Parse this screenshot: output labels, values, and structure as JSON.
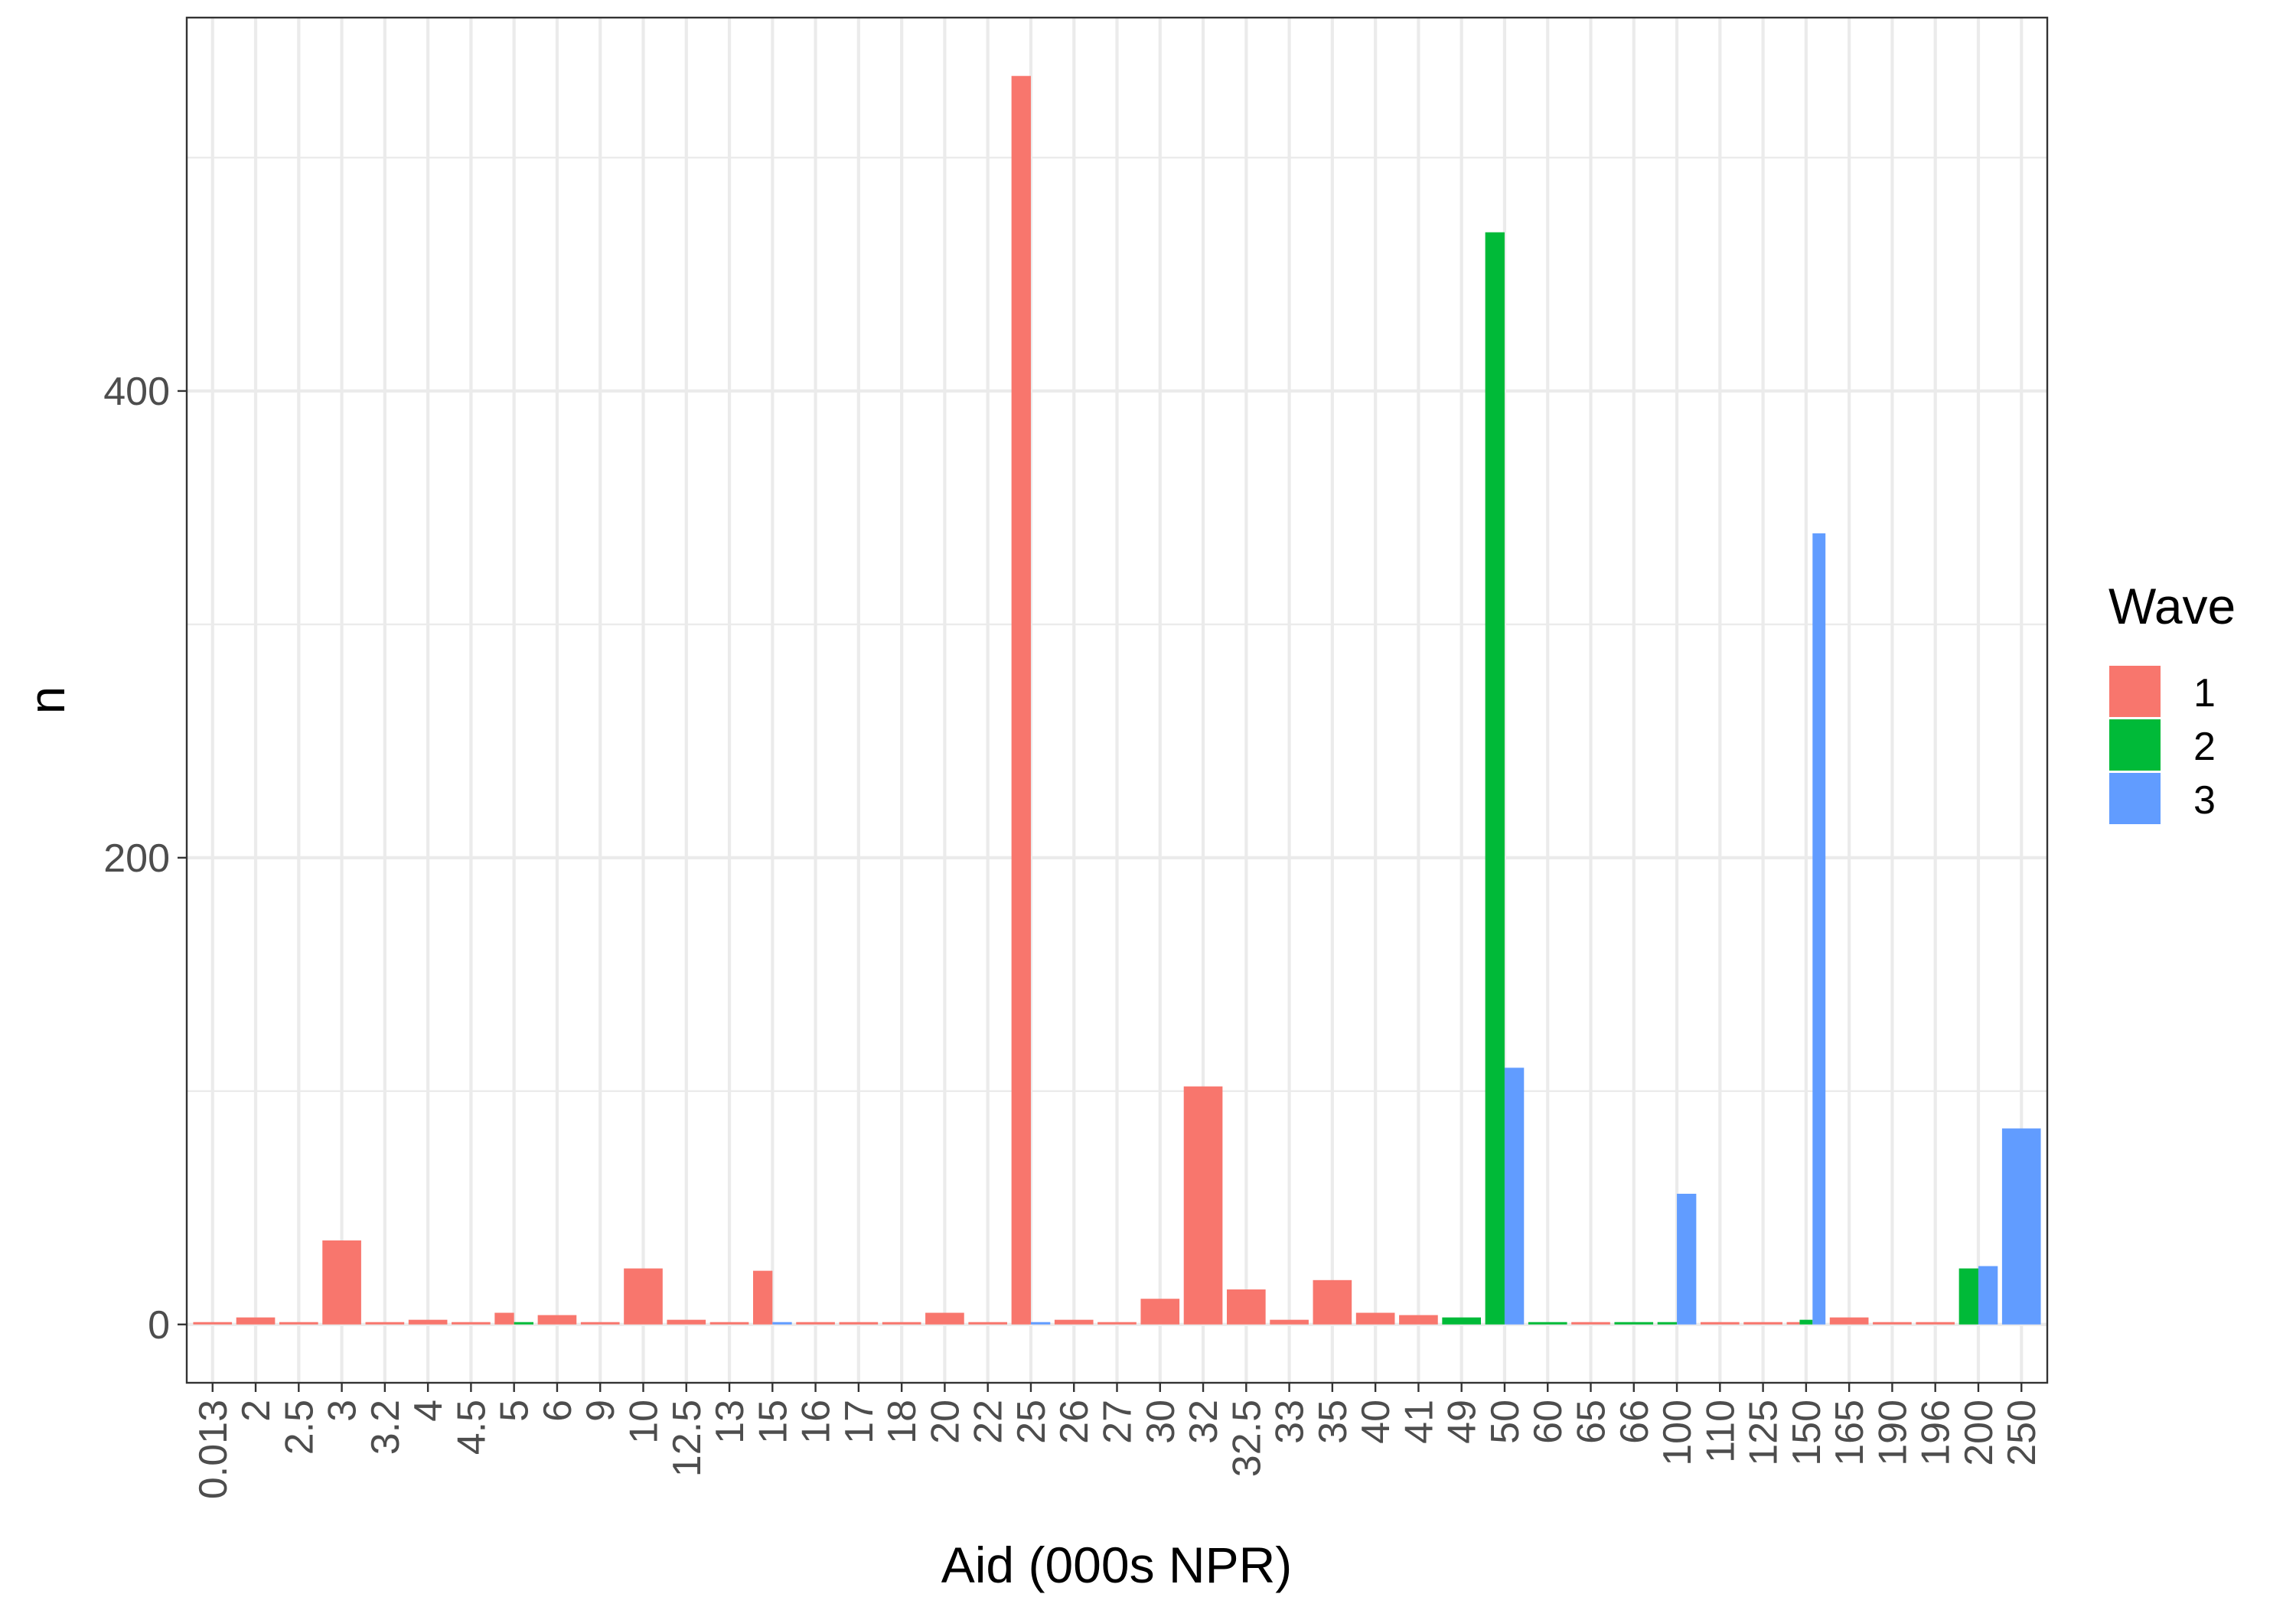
{
  "chart_data": {
    "type": "bar",
    "position": "dodge",
    "xlabel": "Aid (000s NPR)",
    "ylabel": "n",
    "yticks": [
      0,
      200,
      400
    ],
    "ylim": [
      -25,
      560
    ],
    "grid": true,
    "legend": {
      "title": "Wave",
      "placement": "right",
      "entries": [
        {
          "label": "1",
          "color": "#F8766D"
        },
        {
          "label": "2",
          "color": "#00BA38"
        },
        {
          "label": "3",
          "color": "#619CFF"
        }
      ]
    },
    "categories": [
      "0.013",
      "2",
      "2.5",
      "3",
      "3.2",
      "4",
      "4.5",
      "5",
      "6",
      "9",
      "10",
      "12.5",
      "13",
      "15",
      "16",
      "17",
      "18",
      "20",
      "22",
      "25",
      "26",
      "27",
      "30",
      "32",
      "32.5",
      "33",
      "35",
      "40",
      "41",
      "49",
      "50",
      "60",
      "65",
      "66",
      "100",
      "110",
      "125",
      "150",
      "165",
      "190",
      "196",
      "200",
      "250"
    ],
    "bars": [
      {
        "category": "0.013",
        "groups": [
          {
            "wave": "1",
            "n": 1
          }
        ]
      },
      {
        "category": "2",
        "groups": [
          {
            "wave": "1",
            "n": 3
          }
        ]
      },
      {
        "category": "2.5",
        "groups": [
          {
            "wave": "1",
            "n": 1
          }
        ]
      },
      {
        "category": "3",
        "groups": [
          {
            "wave": "1",
            "n": 36
          }
        ]
      },
      {
        "category": "3.2",
        "groups": [
          {
            "wave": "1",
            "n": 1
          }
        ]
      },
      {
        "category": "4",
        "groups": [
          {
            "wave": "1",
            "n": 2
          }
        ]
      },
      {
        "category": "4.5",
        "groups": [
          {
            "wave": "1",
            "n": 1
          }
        ]
      },
      {
        "category": "5",
        "groups": [
          {
            "wave": "1",
            "n": 5
          },
          {
            "wave": "2",
            "n": 1
          }
        ]
      },
      {
        "category": "6",
        "groups": [
          {
            "wave": "1",
            "n": 4
          }
        ]
      },
      {
        "category": "9",
        "groups": [
          {
            "wave": "1",
            "n": 1
          }
        ]
      },
      {
        "category": "10",
        "groups": [
          {
            "wave": "1",
            "n": 24
          }
        ]
      },
      {
        "category": "12.5",
        "groups": [
          {
            "wave": "1",
            "n": 2
          }
        ]
      },
      {
        "category": "13",
        "groups": [
          {
            "wave": "1",
            "n": 1
          }
        ]
      },
      {
        "category": "15",
        "groups": [
          {
            "wave": "1",
            "n": 23
          },
          {
            "wave": "3",
            "n": 1
          }
        ]
      },
      {
        "category": "16",
        "groups": [
          {
            "wave": "1",
            "n": 1
          }
        ]
      },
      {
        "category": "17",
        "groups": [
          {
            "wave": "1",
            "n": 1
          }
        ]
      },
      {
        "category": "18",
        "groups": [
          {
            "wave": "1",
            "n": 1
          }
        ]
      },
      {
        "category": "20",
        "groups": [
          {
            "wave": "1",
            "n": 5
          }
        ]
      },
      {
        "category": "22",
        "groups": [
          {
            "wave": "1",
            "n": 1
          }
        ]
      },
      {
        "category": "25",
        "groups": [
          {
            "wave": "1",
            "n": 535
          },
          {
            "wave": "3",
            "n": 1
          }
        ]
      },
      {
        "category": "26",
        "groups": [
          {
            "wave": "1",
            "n": 2
          }
        ]
      },
      {
        "category": "27",
        "groups": [
          {
            "wave": "1",
            "n": 1
          }
        ]
      },
      {
        "category": "30",
        "groups": [
          {
            "wave": "1",
            "n": 11
          }
        ]
      },
      {
        "category": "32",
        "groups": [
          {
            "wave": "1",
            "n": 102
          }
        ]
      },
      {
        "category": "32.5",
        "groups": [
          {
            "wave": "1",
            "n": 15
          }
        ]
      },
      {
        "category": "33",
        "groups": [
          {
            "wave": "1",
            "n": 2
          }
        ]
      },
      {
        "category": "35",
        "groups": [
          {
            "wave": "1",
            "n": 19
          }
        ]
      },
      {
        "category": "40",
        "groups": [
          {
            "wave": "1",
            "n": 5
          }
        ]
      },
      {
        "category": "41",
        "groups": [
          {
            "wave": "1",
            "n": 4
          }
        ]
      },
      {
        "category": "49",
        "groups": [
          {
            "wave": "2",
            "n": 3
          }
        ]
      },
      {
        "category": "50",
        "groups": [
          {
            "wave": "2",
            "n": 468
          },
          {
            "wave": "3",
            "n": 110
          }
        ]
      },
      {
        "category": "60",
        "groups": [
          {
            "wave": "2",
            "n": 1
          }
        ]
      },
      {
        "category": "65",
        "groups": [
          {
            "wave": "1",
            "n": 1
          }
        ]
      },
      {
        "category": "66",
        "groups": [
          {
            "wave": "2",
            "n": 1
          }
        ]
      },
      {
        "category": "100",
        "groups": [
          {
            "wave": "2",
            "n": 1
          },
          {
            "wave": "3",
            "n": 56
          }
        ]
      },
      {
        "category": "110",
        "groups": [
          {
            "wave": "1",
            "n": 1
          }
        ]
      },
      {
        "category": "125",
        "groups": [
          {
            "wave": "1",
            "n": 1
          }
        ]
      },
      {
        "category": "150",
        "groups": [
          {
            "wave": "1",
            "n": 1
          },
          {
            "wave": "2",
            "n": 2
          },
          {
            "wave": "3",
            "n": 339
          }
        ]
      },
      {
        "category": "165",
        "groups": [
          {
            "wave": "1",
            "n": 3
          }
        ]
      },
      {
        "category": "190",
        "groups": [
          {
            "wave": "1",
            "n": 1
          }
        ]
      },
      {
        "category": "196",
        "groups": [
          {
            "wave": "1",
            "n": 1
          }
        ]
      },
      {
        "category": "200",
        "groups": [
          {
            "wave": "2",
            "n": 24
          },
          {
            "wave": "3",
            "n": 25
          }
        ]
      },
      {
        "category": "250",
        "groups": [
          {
            "wave": "3",
            "n": 84
          }
        ]
      }
    ]
  }
}
